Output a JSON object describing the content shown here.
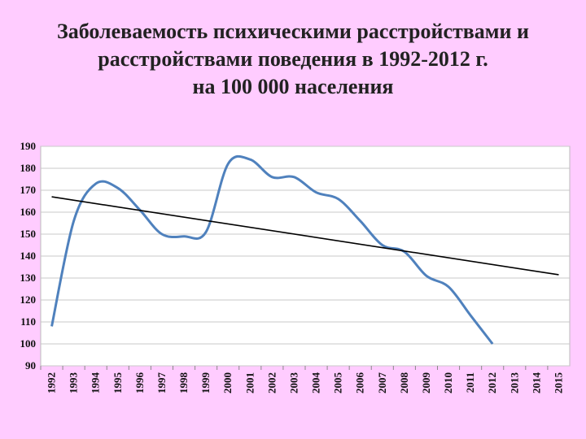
{
  "title": {
    "line1": "Заболеваемость психическими расстройствами и",
    "line2": "расстройствами поведения в 1992-2012 г.",
    "line3": "на 100 000 населения"
  },
  "chart_data": {
    "type": "line",
    "title": "Заболеваемость психическими расстройствами и расстройствами поведения в 1992-2012 г. на 100 000 населения",
    "xlabel": "",
    "ylabel": "",
    "categories": [
      "1992",
      "1993",
      "1994",
      "1995",
      "1996",
      "1997",
      "1998",
      "1999",
      "2000",
      "2001",
      "2002",
      "2003",
      "2004",
      "2005",
      "2006",
      "2007",
      "2008",
      "2009",
      "2010",
      "2011",
      "2012",
      "2013",
      "2014",
      "2015"
    ],
    "ylim": [
      90,
      190
    ],
    "yticks": [
      90,
      100,
      110,
      120,
      130,
      140,
      150,
      160,
      170,
      180,
      190
    ],
    "grid": "horizontal",
    "legend": "none",
    "series": [
      {
        "color": "#4f81bd",
        "smooth": true,
        "values": [
          108,
          156,
          173,
          171,
          161,
          150,
          149,
          151,
          182,
          184,
          176,
          176,
          169,
          166,
          156,
          145,
          142,
          131,
          126,
          113,
          100,
          null,
          null,
          null
        ]
      },
      {
        "color": "#000000",
        "trend": "linear",
        "start": {
          "x": "1992",
          "y": 167
        },
        "end": {
          "x": "2015",
          "y": 131.5
        }
      }
    ]
  }
}
